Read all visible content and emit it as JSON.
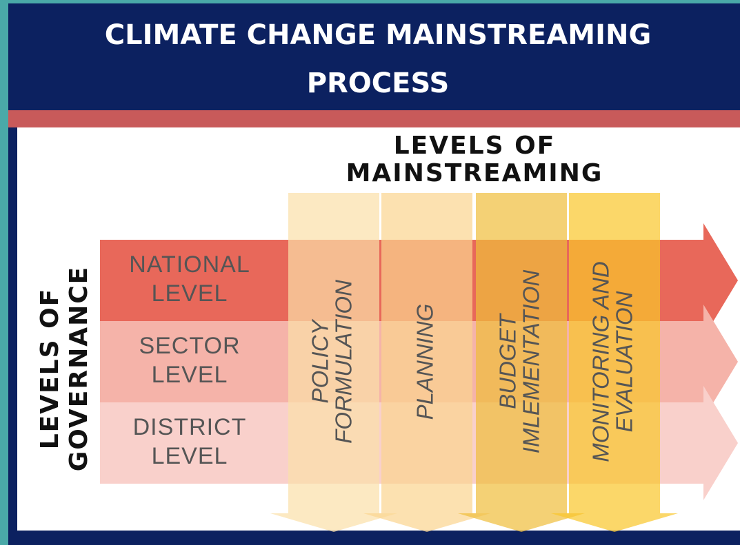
{
  "title": [
    "CLIMATE CHANGE MAINSTREAMING",
    "PROCESS"
  ],
  "mainstreaming_heading": [
    "LEVELS OF",
    "MAINSTREAMING"
  ],
  "governance_heading": [
    "LEVELS OF",
    "GOVERNANCE"
  ],
  "rows": [
    {
      "label": [
        "NATIONAL",
        "LEVEL"
      ]
    },
    {
      "label": [
        "SECTOR",
        "LEVEL"
      ]
    },
    {
      "label": [
        "DISTRICT",
        "LEVEL"
      ]
    }
  ],
  "columns": [
    {
      "label": [
        "POLICY",
        "FORMULATION"
      ]
    },
    {
      "label": [
        "PLANNING"
      ]
    },
    {
      "label": [
        "BUDGET",
        "IMLEMENTATION"
      ]
    },
    {
      "label": [
        "MONITORING AND",
        "EVALUATION"
      ]
    }
  ]
}
